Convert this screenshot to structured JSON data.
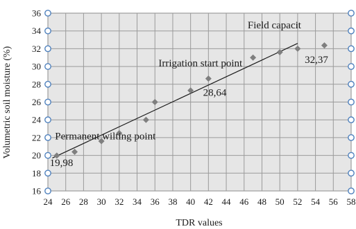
{
  "chart_data": {
    "type": "scatter",
    "xlabel": "TDR values",
    "ylabel": "Volumetric soil moisture (%)",
    "xlim": [
      24,
      58
    ],
    "ylim": [
      16,
      36
    ],
    "x_ticks": [
      24,
      26,
      28,
      30,
      32,
      34,
      36,
      38,
      40,
      42,
      44,
      46,
      48,
      50,
      52,
      54,
      56,
      58
    ],
    "y_ticks": [
      16,
      18,
      20,
      22,
      24,
      26,
      28,
      30,
      32,
      34,
      36
    ],
    "grid": true,
    "plot_background": "#e6e6e6",
    "marker_color": "#7f7f7f",
    "axis_dot_color": "#4f81bd",
    "series": [
      {
        "points": [
          {
            "x": 25,
            "y": 19.98
          },
          {
            "x": 27,
            "y": 20.4
          },
          {
            "x": 30,
            "y": 21.6
          },
          {
            "x": 32,
            "y": 22.5
          },
          {
            "x": 35,
            "y": 24.0
          },
          {
            "x": 36,
            "y": 26.0
          },
          {
            "x": 40,
            "y": 27.3
          },
          {
            "x": 42,
            "y": 28.64
          },
          {
            "x": 47,
            "y": 31.0
          },
          {
            "x": 50,
            "y": 31.6
          },
          {
            "x": 52,
            "y": 32.0
          },
          {
            "x": 55,
            "y": 32.37
          }
        ]
      }
    ],
    "trendline": {
      "x": [
        24.5,
        52
      ],
      "y": [
        19.7,
        32.6
      ]
    },
    "annotations": [
      {
        "text": "Permanent wilting point",
        "x": 24.8,
        "y": 21.8
      },
      {
        "text": "19,98",
        "x": 24.2,
        "y": 18.8
      },
      {
        "text": "Irrigation start point",
        "x": 36.4,
        "y": 30.0
      },
      {
        "text": "28,64",
        "x": 41.4,
        "y": 26.7
      },
      {
        "text": "Field capacit",
        "x": 46.4,
        "y": 34.3
      },
      {
        "text": "32,37",
        "x": 52.8,
        "y": 30.4
      }
    ]
  }
}
